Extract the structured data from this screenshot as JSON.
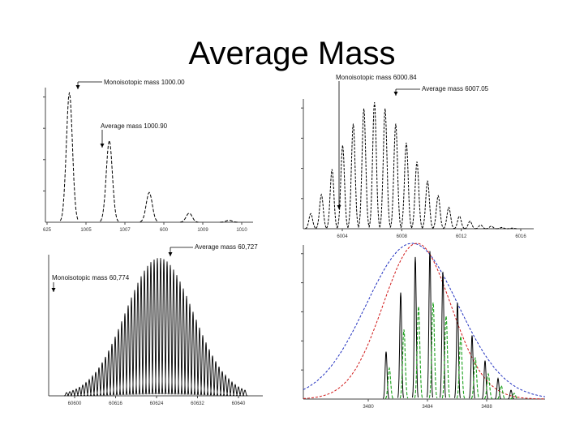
{
  "slide": {
    "title": "Average Mass"
  },
  "chart_data": [
    {
      "type": "line",
      "panel": "top-left",
      "title": "",
      "xlabel": "",
      "ylabel": "",
      "x_ticks": [
        "625",
        "1005",
        "1007",
        "600",
        "1009",
        "1010"
      ],
      "annotations": [
        {
          "text": "Monoisotopic mass 1000.00"
        },
        {
          "text": "Average mass 1000.90"
        }
      ],
      "series": [
        {
          "color": "#000000",
          "style": "dashed",
          "peaks": [
            {
              "x": 1,
              "y": 100
            },
            {
              "x": 2,
              "y": 63
            },
            {
              "x": 3,
              "y": 23
            },
            {
              "x": 4,
              "y": 7
            },
            {
              "x": 5,
              "y": 1.5
            }
          ]
        }
      ],
      "xlim": [
        0.4,
        5.6
      ],
      "ylim": [
        0,
        100
      ]
    },
    {
      "type": "line",
      "panel": "top-right",
      "title": "",
      "xlabel": "",
      "ylabel": "",
      "x_ticks": [
        "6004",
        "6008",
        "6012",
        "6016"
      ],
      "annotations": [
        {
          "text": "Monoisotopic mass 6000.84"
        },
        {
          "text": "Average mass 6007.05"
        }
      ],
      "series": [
        {
          "color": "#000000",
          "style": "dashed",
          "peaks": [
            {
              "x": 1,
              "y": 12
            },
            {
              "x": 2,
              "y": 27
            },
            {
              "x": 3,
              "y": 47
            },
            {
              "x": 4,
              "y": 66
            },
            {
              "x": 5,
              "y": 83
            },
            {
              "x": 6,
              "y": 95
            },
            {
              "x": 7,
              "y": 100
            },
            {
              "x": 8,
              "y": 95
            },
            {
              "x": 9,
              "y": 83
            },
            {
              "x": 10,
              "y": 68
            },
            {
              "x": 11,
              "y": 53
            },
            {
              "x": 12,
              "y": 38
            },
            {
              "x": 13,
              "y": 26
            },
            {
              "x": 14,
              "y": 17
            },
            {
              "x": 15,
              "y": 10
            },
            {
              "x": 16,
              "y": 6
            },
            {
              "x": 17,
              "y": 3
            },
            {
              "x": 18,
              "y": 2
            },
            {
              "x": 19,
              "y": 1
            },
            {
              "x": 20,
              "y": 0.5
            }
          ]
        }
      ],
      "xlim": [
        0.3,
        22
      ],
      "ylim": [
        0,
        100
      ]
    },
    {
      "type": "line",
      "panel": "bottom-left",
      "title": "",
      "xlabel": "",
      "ylabel": "",
      "x_ticks": [
        "60600",
        "60616",
        "60624",
        "60632",
        "60640"
      ],
      "annotations": [
        {
          "text": "Average mass 60,727"
        },
        {
          "text": "Monoisotopic mass 60,774"
        }
      ],
      "series": [
        {
          "color": "#000000",
          "style": "solid",
          "envelope": "gaussian",
          "peak_count": 56,
          "center_fraction": 0.52,
          "width_fraction": 0.19
        }
      ],
      "ylim": [
        0,
        100
      ]
    },
    {
      "type": "line",
      "panel": "bottom-right",
      "title": "",
      "xlabel": "",
      "ylabel": "",
      "x_ticks": [
        "3480",
        "3484",
        "3488"
      ],
      "annotations": [],
      "series": [
        {
          "name": "",
          "color": "#1f2fbf",
          "style": "dashed",
          "envelope": "gaussian",
          "center_fraction": 0.45,
          "width_fraction": 0.19
        },
        {
          "name": "",
          "color": "#d01818",
          "style": "dashed",
          "envelope": "gaussian",
          "center_fraction": 0.47,
          "width_fraction": 0.14
        },
        {
          "name": "",
          "color": "#1aa01a",
          "style": "dashed",
          "envelope": "peaks",
          "peak_count": 10
        },
        {
          "name": "",
          "color": "#000000",
          "style": "solid",
          "envelope": "peaks",
          "peak_count": 10
        }
      ],
      "ylim": [
        0,
        100
      ]
    }
  ]
}
